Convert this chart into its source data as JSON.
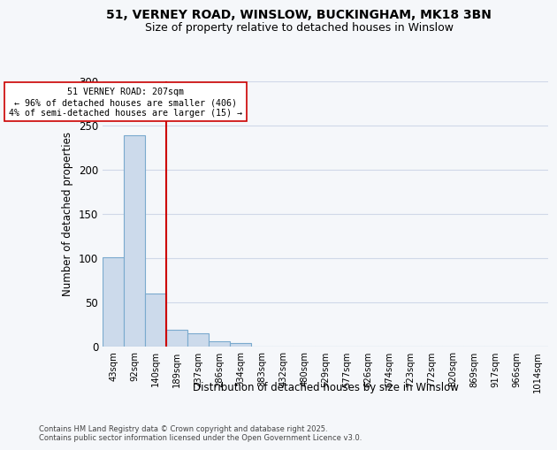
{
  "title_line1": "51, VERNEY ROAD, WINSLOW, BUCKINGHAM, MK18 3BN",
  "title_line2": "Size of property relative to detached houses in Winslow",
  "xlabel": "Distribution of detached houses by size in Winslow",
  "ylabel": "Number of detached properties",
  "bar_labels": [
    "43sqm",
    "92sqm",
    "140sqm",
    "189sqm",
    "237sqm",
    "286sqm",
    "334sqm",
    "383sqm",
    "432sqm",
    "480sqm",
    "529sqm",
    "577sqm",
    "626sqm",
    "674sqm",
    "723sqm",
    "772sqm",
    "820sqm",
    "869sqm",
    "917sqm",
    "966sqm",
    "1014sqm"
  ],
  "bar_values": [
    101,
    239,
    60,
    19,
    15,
    6,
    4,
    0,
    0,
    0,
    0,
    0,
    0,
    0,
    0,
    0,
    0,
    0,
    0,
    0,
    0
  ],
  "bar_color": "#ccdaeb",
  "bar_edgecolor": "#7aaace",
  "vline_color": "#cc0000",
  "vline_pos": 3.0,
  "annotation_text": "51 VERNEY ROAD: 207sqm\n← 96% of detached houses are smaller (406)\n4% of semi-detached houses are larger (15) →",
  "annotation_box_edgecolor": "#cc0000",
  "annotation_box_facecolor": "white",
  "ylim": [
    0,
    300
  ],
  "yticks": [
    0,
    50,
    100,
    150,
    200,
    250,
    300
  ],
  "background_color": "#f5f7fa",
  "grid_color": "#d0d8e8",
  "footer_line1": "Contains HM Land Registry data © Crown copyright and database right 2025.",
  "footer_line2": "Contains public sector information licensed under the Open Government Licence v3.0."
}
